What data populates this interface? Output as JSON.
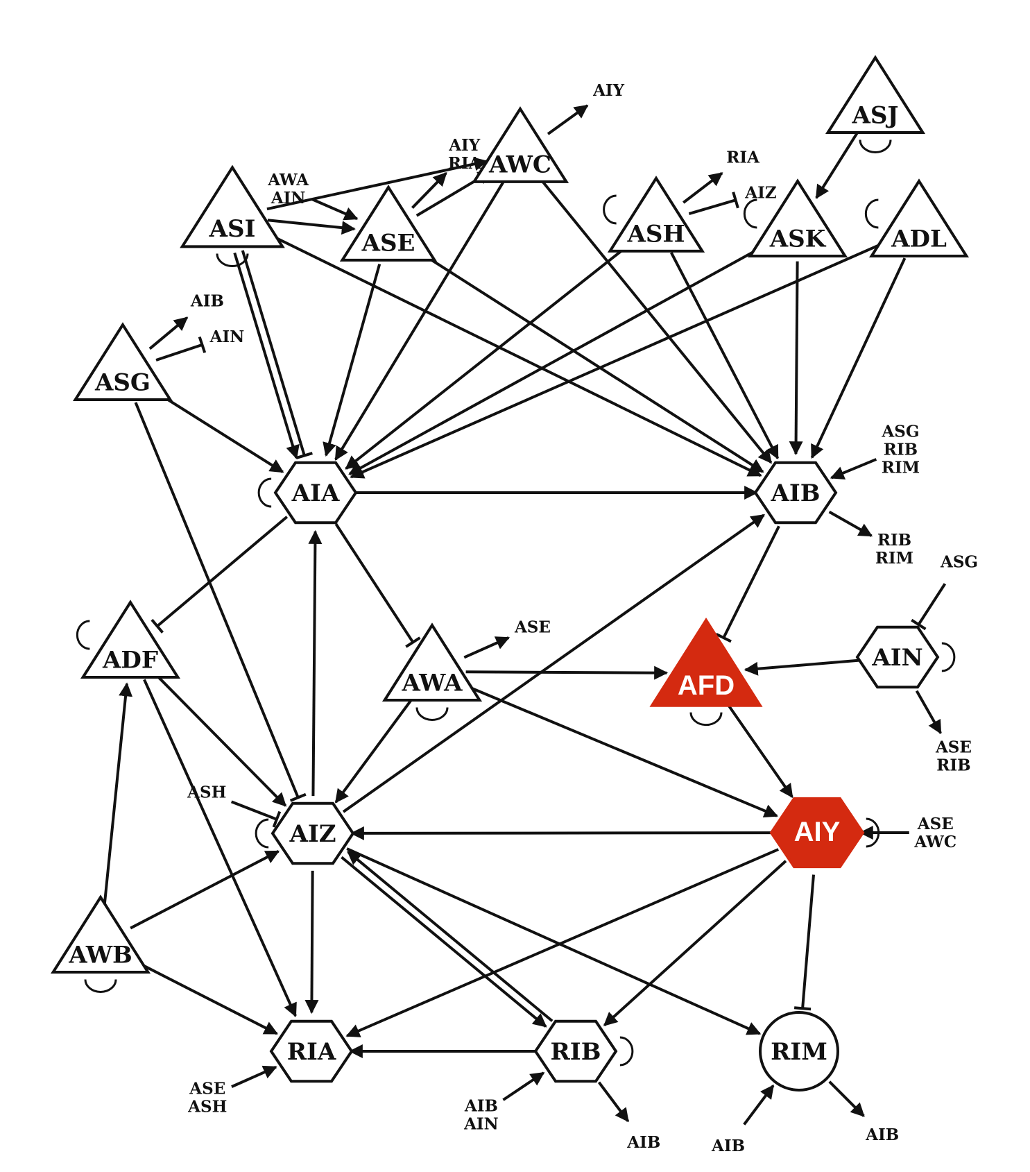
{
  "nodes": [
    {
      "id": "ASJ",
      "label": "ASJ",
      "shape": "triangle"
    },
    {
      "id": "AWC",
      "label": "AWC",
      "shape": "triangle"
    },
    {
      "id": "ASI",
      "label": "ASI",
      "shape": "triangle"
    },
    {
      "id": "ASE",
      "label": "ASE",
      "shape": "triangle"
    },
    {
      "id": "ASH",
      "label": "ASH",
      "shape": "triangle"
    },
    {
      "id": "ASK",
      "label": "ASK",
      "shape": "triangle"
    },
    {
      "id": "ADL",
      "label": "ADL",
      "shape": "triangle"
    },
    {
      "id": "ASG",
      "label": "ASG",
      "shape": "triangle"
    },
    {
      "id": "ADF",
      "label": "ADF",
      "shape": "triangle"
    },
    {
      "id": "AWA",
      "label": "AWA",
      "shape": "triangle"
    },
    {
      "id": "AWB",
      "label": "AWB",
      "shape": "triangle"
    },
    {
      "id": "AFD",
      "label": "AFD",
      "shape": "triangle",
      "highlight": true
    },
    {
      "id": "AIA",
      "label": "AIA",
      "shape": "hexagon"
    },
    {
      "id": "AIB",
      "label": "AIB",
      "shape": "hexagon"
    },
    {
      "id": "AIN",
      "label": "AIN",
      "shape": "hexagon"
    },
    {
      "id": "AIZ",
      "label": "AIZ",
      "shape": "hexagon"
    },
    {
      "id": "AIY",
      "label": "AIY",
      "shape": "hexagon",
      "highlight": true
    },
    {
      "id": "RIA",
      "label": "RIA",
      "shape": "hexagon"
    },
    {
      "id": "RIB",
      "label": "RIB",
      "shape": "hexagon"
    },
    {
      "id": "RIM",
      "label": "RIM",
      "shape": "circle"
    }
  ],
  "edges": [
    {
      "from": "ASJ",
      "to": "ASK",
      "type": "excitatory"
    },
    {
      "from": "ASI",
      "to": "AWC",
      "type": "excitatory"
    },
    {
      "from": "ASI",
      "to": "ASE",
      "type": "excitatory"
    },
    {
      "from": "ASE",
      "to": "AWC",
      "type": "excitatory"
    },
    {
      "from": "ASI",
      "to": "AIA",
      "type": "inhibitory"
    },
    {
      "from": "ASI",
      "to": "AIA",
      "type": "excitatory"
    },
    {
      "from": "ASI",
      "to": "AIB",
      "type": "excitatory"
    },
    {
      "from": "ASE",
      "to": "AIA",
      "type": "excitatory"
    },
    {
      "from": "ASE",
      "to": "AIB",
      "type": "excitatory"
    },
    {
      "from": "AWC",
      "to": "AIA",
      "type": "excitatory"
    },
    {
      "from": "AWC",
      "to": "AIB",
      "type": "excitatory"
    },
    {
      "from": "ASH",
      "to": "AIA",
      "type": "excitatory"
    },
    {
      "from": "ASH",
      "to": "AIB",
      "type": "excitatory"
    },
    {
      "from": "ASK",
      "to": "AIA",
      "type": "excitatory"
    },
    {
      "from": "ASK",
      "to": "AIB",
      "type": "excitatory"
    },
    {
      "from": "ADL",
      "to": "AIA",
      "type": "excitatory"
    },
    {
      "from": "ADL",
      "to": "AIB",
      "type": "excitatory"
    },
    {
      "from": "ASG",
      "to": "AIA",
      "type": "excitatory"
    },
    {
      "from": "ASG",
      "to": "AIZ",
      "type": "inhibitory"
    },
    {
      "from": "AIA",
      "to": "AIB",
      "type": "excitatory"
    },
    {
      "from": "AIA",
      "to": "ADF",
      "type": "inhibitory"
    },
    {
      "from": "AIA",
      "to": "AWA",
      "type": "inhibitory"
    },
    {
      "from": "AIZ",
      "to": "AIA",
      "type": "excitatory"
    },
    {
      "from": "AIZ",
      "to": "AIB",
      "type": "excitatory"
    },
    {
      "from": "AIB",
      "to": "AFD",
      "type": "inhibitory"
    },
    {
      "from": "AWA",
      "to": "AFD",
      "type": "excitatory"
    },
    {
      "from": "AIN",
      "to": "AFD",
      "type": "excitatory"
    },
    {
      "from": "AWA",
      "to": "AIZ",
      "type": "excitatory"
    },
    {
      "from": "AWA",
      "to": "AIY",
      "type": "excitatory"
    },
    {
      "from": "AFD",
      "to": "AIY",
      "type": "excitatory"
    },
    {
      "from": "AIY",
      "to": "AIZ",
      "type": "excitatory"
    },
    {
      "from": "ADF",
      "to": "AIZ",
      "type": "excitatory"
    },
    {
      "from": "ADF",
      "to": "RIA",
      "type": "excitatory"
    },
    {
      "from": "AWB",
      "to": "ADF",
      "type": "excitatory"
    },
    {
      "from": "AWB",
      "to": "AIZ",
      "type": "excitatory"
    },
    {
      "from": "AWB",
      "to": "RIA",
      "type": "excitatory"
    },
    {
      "from": "AIZ",
      "to": "RIA",
      "type": "excitatory"
    },
    {
      "from": "AIZ",
      "to": "RIM",
      "type": "excitatory"
    },
    {
      "from": "AIZ",
      "to": "RIB",
      "type": "excitatory"
    },
    {
      "from": "RIB",
      "to": "AIZ",
      "type": "excitatory"
    },
    {
      "from": "AIY",
      "to": "RIA",
      "type": "excitatory"
    },
    {
      "from": "AIY",
      "to": "RIB",
      "type": "excitatory"
    },
    {
      "from": "AIY",
      "to": "RIM",
      "type": "inhibitory"
    },
    {
      "from": "RIB",
      "to": "RIA",
      "type": "excitatory"
    }
  ],
  "external": [
    {
      "node": "AWC",
      "dir": "out",
      "type": "excitatory",
      "lines": [
        "AIY"
      ]
    },
    {
      "node": "ASE",
      "dir": "out",
      "type": "excitatory",
      "lines": [
        "AIY",
        "RIA"
      ]
    },
    {
      "node": "ASE",
      "dir": "in",
      "type": "excitatory",
      "lines": [
        "AWA",
        "AIN"
      ]
    },
    {
      "node": "ASH",
      "dir": "out",
      "type": "excitatory",
      "lines": [
        "RIA"
      ]
    },
    {
      "node": "ASH",
      "dir": "out",
      "type": "inhibitory",
      "lines": [
        "AIZ"
      ]
    },
    {
      "node": "ASG",
      "dir": "out",
      "type": "excitatory",
      "lines": [
        "AIB"
      ]
    },
    {
      "node": "ASG",
      "dir": "out",
      "type": "inhibitory",
      "lines": [
        "AIN"
      ]
    },
    {
      "node": "AIB",
      "dir": "in",
      "type": "excitatory",
      "lines": [
        "ASG",
        "RIB",
        "RIM"
      ]
    },
    {
      "node": "AIB",
      "dir": "out",
      "type": "excitatory",
      "lines": [
        "RIB",
        "RIM"
      ]
    },
    {
      "node": "AWA",
      "dir": "out",
      "type": "excitatory",
      "lines": [
        "ASE"
      ]
    },
    {
      "node": "AIN",
      "dir": "in",
      "type": "inhibitory",
      "lines": [
        "ASG"
      ]
    },
    {
      "node": "AIN",
      "dir": "out",
      "type": "excitatory",
      "lines": [
        "ASE",
        "RIB"
      ]
    },
    {
      "node": "AIZ",
      "dir": "in",
      "type": "inhibitory",
      "lines": [
        "ASH"
      ]
    },
    {
      "node": "AIY",
      "dir": "in",
      "type": "excitatory",
      "lines": [
        "ASE",
        "AWC"
      ]
    },
    {
      "node": "RIA",
      "dir": "in",
      "type": "excitatory",
      "lines": [
        "ASE",
        "ASH"
      ]
    },
    {
      "node": "RIB",
      "dir": "in",
      "type": "excitatory",
      "lines": [
        "AIB",
        "AIN"
      ]
    },
    {
      "node": "RIB",
      "dir": "out",
      "type": "excitatory",
      "lines": [
        "AIB"
      ]
    },
    {
      "node": "RIM",
      "dir": "in",
      "type": "excitatory",
      "lines": [
        "AIB"
      ]
    },
    {
      "node": "RIM",
      "dir": "out",
      "type": "excitatory",
      "lines": [
        "AIB"
      ]
    }
  ],
  "highlight_color": "#d42a10",
  "line_color": "#111111"
}
